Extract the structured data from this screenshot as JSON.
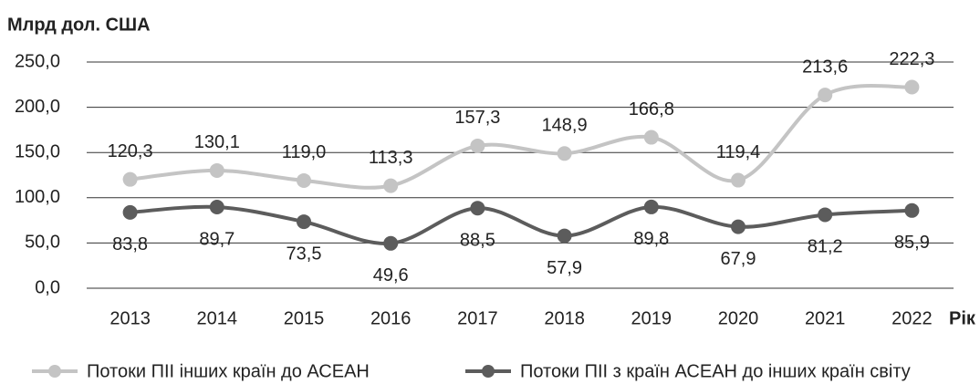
{
  "chart_data": {
    "type": "line",
    "y_label": "Млрд дол. США",
    "x_label": "Рік",
    "categories": [
      "2013",
      "2014",
      "2015",
      "2016",
      "2017",
      "2018",
      "2019",
      "2020",
      "2021",
      "2022"
    ],
    "series": [
      {
        "name": "Потоки ПІІ інших країн до АСЕАН",
        "color": "#c4c4c4",
        "values": [
          120.3,
          130.1,
          119.0,
          113.3,
          157.3,
          148.9,
          166.8,
          119.4,
          213.6,
          222.3
        ],
        "value_labels": [
          "120,3",
          "130,1",
          "119,0",
          "113,3",
          "157,3",
          "148,9",
          "166,8",
          "119,4",
          "213,6",
          "222,3"
        ]
      },
      {
        "name": "Потоки ПІІ з країн АСЕАН до інших країн світу",
        "color": "#5c5c5c",
        "values": [
          83.8,
          89.7,
          73.5,
          49.6,
          88.5,
          57.9,
          89.8,
          67.9,
          81.2,
          85.9
        ],
        "value_labels": [
          "83,8",
          "89,7",
          "73,5",
          "49,6",
          "88,5",
          "57,9",
          "89,8",
          "67,9",
          "81,2",
          "85,9"
        ]
      }
    ],
    "ylim": [
      0,
      250
    ],
    "yticks": [
      {
        "value": 0,
        "label": "0,0"
      },
      {
        "value": 50,
        "label": "50,0"
      },
      {
        "value": 100,
        "label": "100,0"
      },
      {
        "value": 150,
        "label": "150,0"
      },
      {
        "value": 200,
        "label": "200,0"
      },
      {
        "value": 250,
        "label": "250,0"
      }
    ],
    "grid": true,
    "legend": "bottom"
  }
}
